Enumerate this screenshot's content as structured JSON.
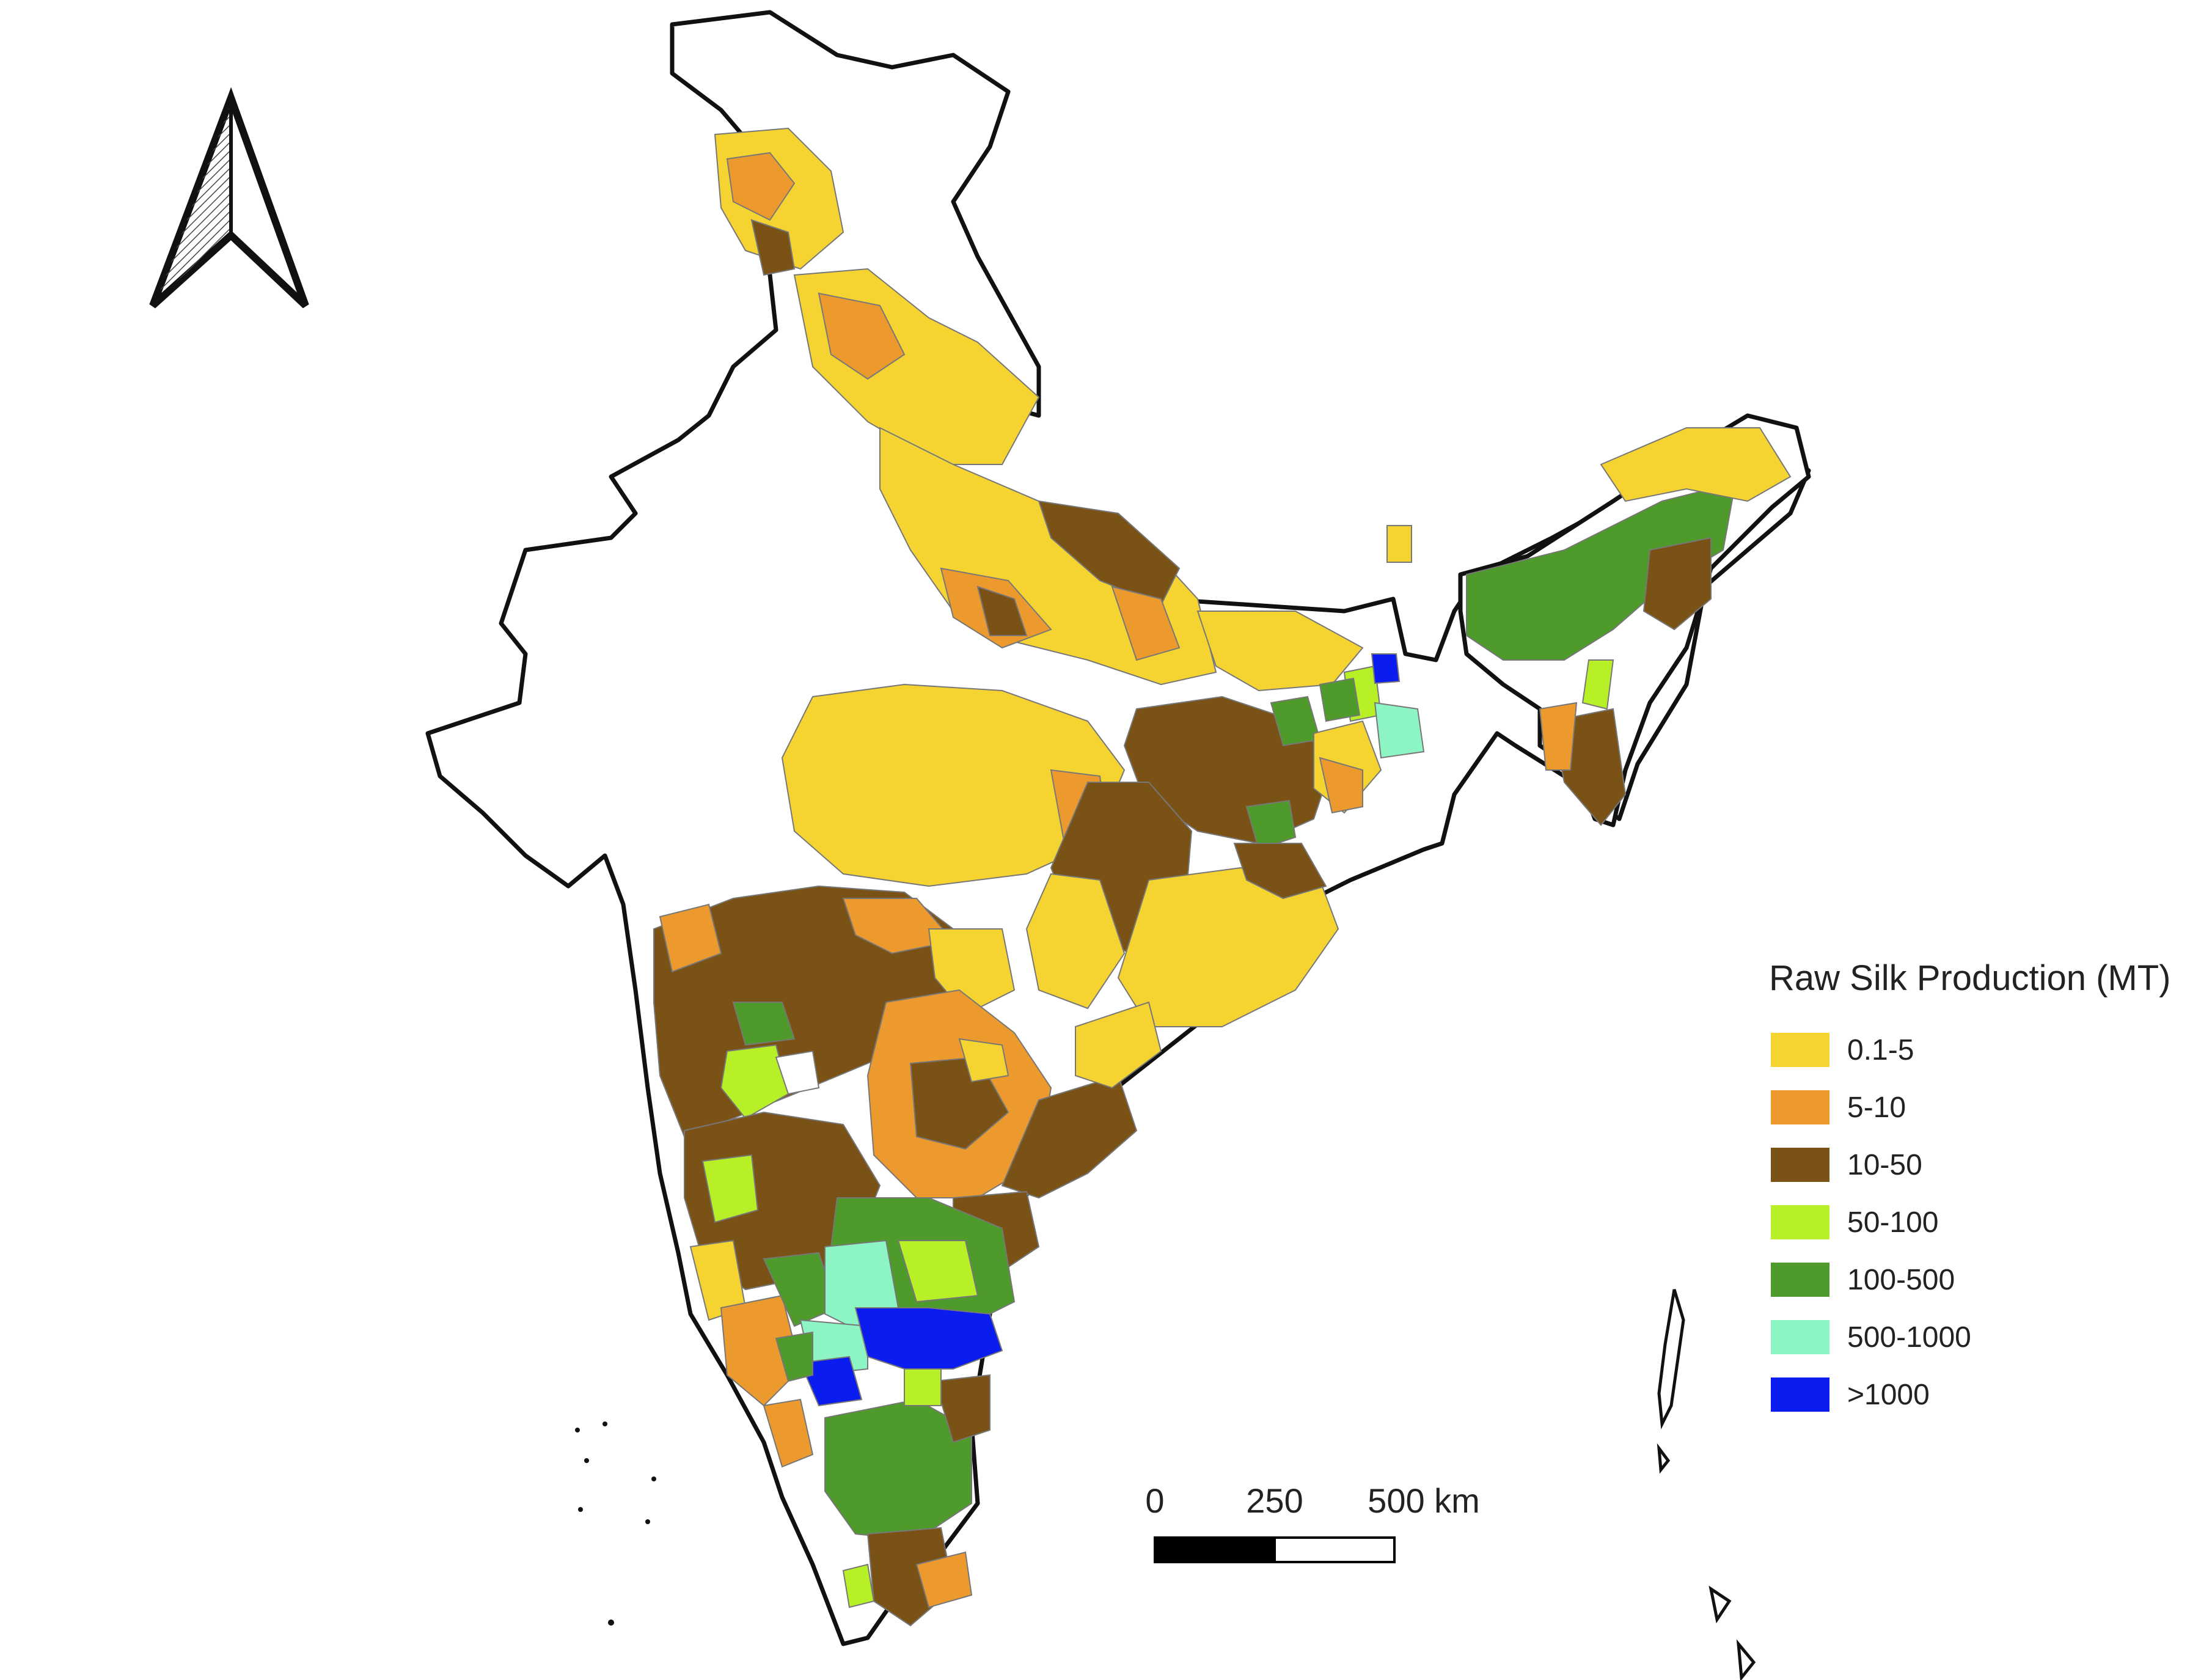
{
  "legend": {
    "title": "Raw Silk Production (MT)",
    "classes": [
      {
        "label": "0.1-5",
        "color": "#F5D432"
      },
      {
        "label": "5-10",
        "color": "#EC9A2E"
      },
      {
        "label": "10-50",
        "color": "#7A5216"
      },
      {
        "label": "50-100",
        "color": "#B8F028"
      },
      {
        "label": "100-500",
        "color": "#4E9A2A"
      },
      {
        "label": "500-1000",
        "color": "#8CF5C3"
      },
      {
        "label": ">1000",
        "color": "#0A1CF0"
      }
    ]
  },
  "scale_bar": {
    "tick_labels": [
      "0",
      "250",
      "500 km"
    ]
  },
  "north_arrow": {
    "icon": "north-arrow-icon"
  },
  "colors": {
    "no_data": "#FFFFFF",
    "boundary": "#111111",
    "district_boundary": "#9a9a9a"
  }
}
